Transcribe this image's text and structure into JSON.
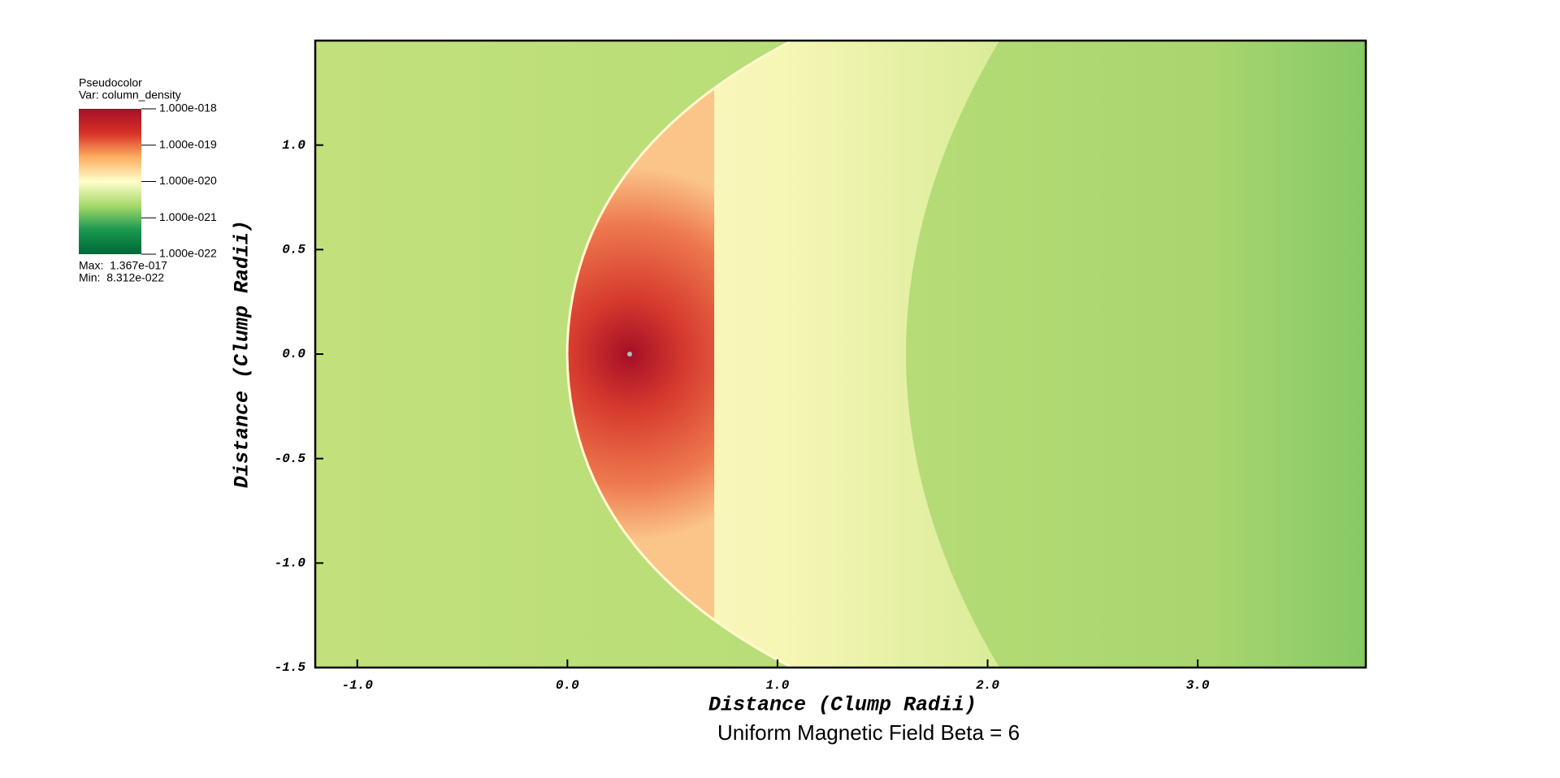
{
  "chart_data": {
    "type": "pseudocolor",
    "title": "Uniform Magnetic Field Beta = 6",
    "x_label": "Distance (Clump Radii)",
    "y_label": "Distance (Clump Radii)",
    "xlim": [
      -1.2,
      3.8
    ],
    "ylim": [
      -1.5,
      1.5
    ],
    "xticks": [
      {
        "value": -1,
        "label": "-1.0"
      },
      {
        "value": 0,
        "label": "0.0"
      },
      {
        "value": 1,
        "label": "1.0"
      },
      {
        "value": 2,
        "label": "2.0"
      },
      {
        "value": 3,
        "label": "3.0"
      }
    ],
    "yticks": [
      {
        "value": -1.5,
        "label": "-1.5"
      },
      {
        "value": -1,
        "label": "-1.0"
      },
      {
        "value": -0.5,
        "label": "-0.5"
      },
      {
        "value": 0,
        "label": "0.0"
      },
      {
        "value": 0.5,
        "label": "0.5"
      },
      {
        "value": 1,
        "label": "1.0"
      }
    ],
    "colorbar": {
      "title": "Pseudocolor",
      "variable": "Var: column_density",
      "log_scale": true,
      "lim": [
        1e-22,
        1e-18
      ],
      "ticks": [
        {
          "value": 1e-18,
          "label": "1.000e-018"
        },
        {
          "value": 1e-19,
          "label": "1.000e-019"
        },
        {
          "value": 1e-20,
          "label": "1.000e-020"
        },
        {
          "value": 1e-21,
          "label": "1.000e-021"
        },
        {
          "value": 1e-22,
          "label": "1.000e-022"
        }
      ],
      "colors": [
        "#a50f26",
        "#d73027",
        "#fdae61",
        "#ffffcc",
        "#a6d96a",
        "#1a9850",
        "#006837"
      ],
      "max_text": "Max:  1.367e-017",
      "min_text": "Min:  8.312e-022"
    }
  }
}
